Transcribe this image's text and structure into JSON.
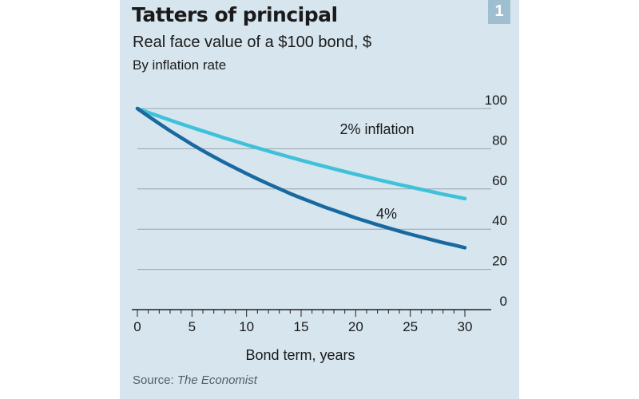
{
  "badge": "1",
  "source": {
    "prefix": "Source: ",
    "name": "The Economist"
  },
  "colors": {
    "background": "#d6e5ee",
    "grid": "#9aa3a8",
    "series_2pct": "#3ec1d9",
    "series_4pct": "#1869a0"
  },
  "chart_data": {
    "type": "line",
    "title": "Tatters of principal",
    "subtitle": "Real face value of a $100 bond, $",
    "note": "By inflation rate",
    "xlabel": "Bond term, years",
    "ylabel": "",
    "xlim": [
      0,
      30
    ],
    "ylim": [
      0,
      100
    ],
    "x_ticks": [
      0,
      5,
      10,
      15,
      20,
      25,
      30
    ],
    "y_ticks": [
      0,
      20,
      40,
      60,
      80,
      100
    ],
    "y_axis_side": "right",
    "grid": true,
    "x": [
      0,
      1,
      2,
      3,
      4,
      5,
      6,
      7,
      8,
      9,
      10,
      11,
      12,
      13,
      14,
      15,
      16,
      17,
      18,
      19,
      20,
      21,
      22,
      23,
      24,
      25,
      26,
      27,
      28,
      29,
      30
    ],
    "series": [
      {
        "name": "2% inflation",
        "values": [
          100,
          98.0,
          96.1,
          94.2,
          92.4,
          90.6,
          88.8,
          87.1,
          85.3,
          83.7,
          82.0,
          80.4,
          78.8,
          77.3,
          75.8,
          74.3,
          72.8,
          71.4,
          70.0,
          68.6,
          67.3,
          66.0,
          64.7,
          63.4,
          62.2,
          61.0,
          59.8,
          58.6,
          57.4,
          56.3,
          55.2
        ]
      },
      {
        "name": "4%",
        "values": [
          100,
          96.2,
          92.5,
          88.9,
          85.5,
          82.2,
          79.0,
          76.0,
          73.1,
          70.3,
          67.6,
          65.0,
          62.5,
          60.1,
          57.7,
          55.5,
          53.4,
          51.3,
          49.4,
          47.5,
          45.6,
          43.9,
          42.2,
          40.6,
          39.0,
          37.5,
          36.1,
          34.7,
          33.3,
          32.1,
          30.8
        ]
      }
    ]
  }
}
